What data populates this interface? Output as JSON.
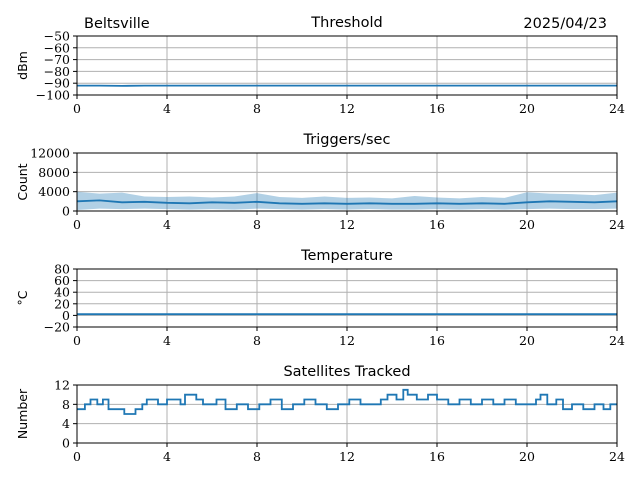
{
  "header": {
    "station": "Beltsville",
    "date": "2025/04/23"
  },
  "chart_data": [
    {
      "type": "line",
      "title": "Threshold",
      "ylabel": "dBm",
      "xlim": [
        0,
        24
      ],
      "ylim": [
        -100,
        -50
      ],
      "xticks": [
        0,
        4,
        8,
        12,
        16,
        20,
        24
      ],
      "yticks": [
        -100,
        -90,
        -80,
        -70,
        -60,
        -50
      ],
      "grid": true,
      "series": [
        {
          "x": [
            0,
            1,
            2,
            3,
            4,
            5,
            6,
            7,
            8,
            9,
            10,
            11,
            12,
            13,
            14,
            15,
            16,
            17,
            18,
            19,
            20,
            21,
            22,
            23,
            24
          ],
          "y": [
            -92,
            -92,
            -92.3,
            -92,
            -92,
            -92,
            -92,
            -92,
            -92,
            -92,
            -92,
            -92,
            -92,
            -92,
            -92,
            -92,
            -92,
            -92,
            -92,
            -92,
            -92,
            -92,
            -92,
            -92,
            -92
          ]
        }
      ]
    },
    {
      "type": "line",
      "title": "Triggers/sec",
      "ylabel": "Count",
      "xlim": [
        0,
        24
      ],
      "ylim": [
        0,
        12000
      ],
      "xticks": [
        0,
        4,
        8,
        12,
        16,
        20,
        24
      ],
      "yticks": [
        0,
        4000,
        8000,
        12000
      ],
      "grid": true,
      "series": [
        {
          "x": [
            0,
            1,
            2,
            3,
            4,
            5,
            6,
            7,
            8,
            9,
            10,
            11,
            12,
            13,
            14,
            15,
            16,
            17,
            18,
            19,
            20,
            21,
            22,
            23,
            24
          ],
          "y": [
            2000,
            2200,
            1800,
            1900,
            1700,
            1600,
            1800,
            1700,
            1900,
            1600,
            1500,
            1600,
            1500,
            1600,
            1500,
            1500,
            1600,
            1500,
            1600,
            1500,
            1800,
            2000,
            1900,
            1800,
            2000
          ],
          "min": [
            200,
            500,
            400,
            500,
            400,
            300,
            400,
            300,
            500,
            400,
            300,
            400,
            300,
            400,
            300,
            300,
            400,
            300,
            400,
            300,
            400,
            500,
            400,
            400,
            500
          ],
          "max": [
            4000,
            3600,
            3800,
            3000,
            2900,
            3000,
            2800,
            3000,
            3700,
            2900,
            2700,
            3000,
            2700,
            2800,
            2600,
            3100,
            2800,
            2600,
            2900,
            2700,
            3900,
            3600,
            3500,
            3300,
            3800
          ]
        }
      ]
    },
    {
      "type": "line",
      "title": "Temperature",
      "ylabel": "°C",
      "xlim": [
        0,
        24
      ],
      "ylim": [
        -20,
        80
      ],
      "xticks": [
        0,
        4,
        8,
        12,
        16,
        20,
        24
      ],
      "yticks": [
        -20,
        0,
        20,
        40,
        60,
        80
      ],
      "grid": true,
      "series": [
        {
          "x": [
            0,
            4,
            8,
            12,
            16,
            20,
            24
          ],
          "y": [
            2,
            2,
            2,
            2,
            2,
            2,
            2
          ]
        }
      ]
    },
    {
      "type": "line",
      "title": "Satellites Tracked",
      "ylabel": "Number",
      "xlim": [
        0,
        24
      ],
      "ylim": [
        0,
        12
      ],
      "xticks": [
        0,
        4,
        8,
        12,
        16,
        20,
        24
      ],
      "yticks": [
        0,
        4,
        8,
        12
      ],
      "grid": true,
      "series": [
        {
          "x": [
            0,
            0.35,
            0.6,
            0.9,
            1.15,
            1.4,
            2.1,
            2.6,
            2.9,
            3.1,
            3.6,
            4.0,
            4.6,
            4.8,
            5.3,
            5.6,
            6.2,
            6.6,
            7.1,
            7.6,
            8.1,
            8.6,
            9.1,
            9.6,
            10.1,
            10.6,
            11.1,
            11.6,
            12.1,
            12.6,
            13.0,
            13.5,
            13.8,
            14.2,
            14.5,
            14.7,
            15.1,
            15.6,
            16.0,
            16.5,
            17.0,
            17.5,
            18.0,
            18.5,
            19.0,
            19.5,
            20.0,
            20.4,
            20.6,
            20.9,
            21.3,
            21.6,
            22.0,
            22.5,
            23.0,
            23.4,
            23.7,
            24.0
          ],
          "drawstyle": "steps-post",
          "y": [
            7,
            8,
            9,
            8,
            9,
            7,
            6,
            7,
            8,
            9,
            8,
            9,
            8,
            10,
            9,
            8,
            9,
            7,
            8,
            7,
            8,
            9,
            7,
            8,
            9,
            8,
            7,
            8,
            9,
            8,
            8,
            9,
            10,
            9,
            11,
            10,
            9,
            10,
            9,
            8,
            9,
            8,
            9,
            8,
            9,
            8,
            8,
            9,
            10,
            8,
            9,
            7,
            8,
            7,
            8,
            7,
            8,
            8
          ]
        }
      ]
    }
  ]
}
